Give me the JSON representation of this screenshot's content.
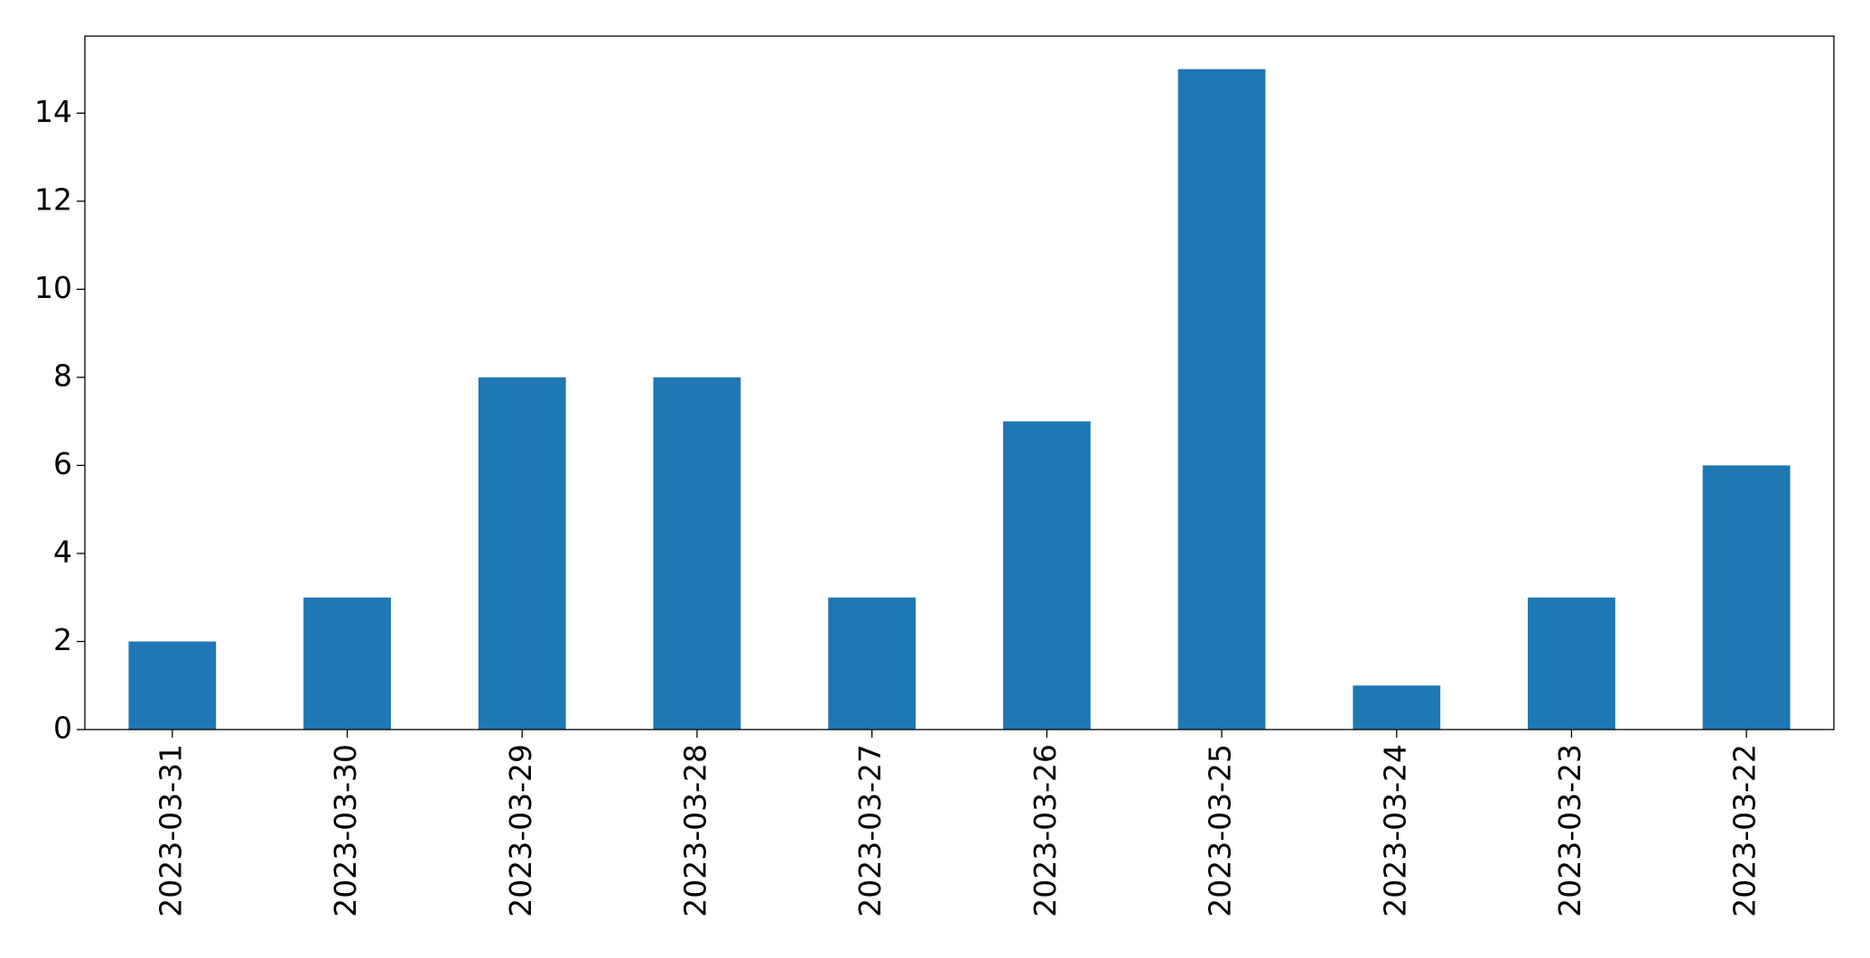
{
  "chart_data": {
    "type": "bar",
    "categories": [
      "2023-03-31",
      "2023-03-30",
      "2023-03-29",
      "2023-03-28",
      "2023-03-27",
      "2023-03-26",
      "2023-03-25",
      "2023-03-24",
      "2023-03-23",
      "2023-03-22"
    ],
    "values": [
      2,
      3,
      8,
      8,
      3,
      7,
      15,
      1,
      3,
      6
    ],
    "color": "#1f77b4",
    "ylim": [
      0,
      15.75
    ],
    "yticks": [
      0,
      2,
      4,
      6,
      8,
      10,
      12,
      14
    ],
    "grid": false
  }
}
